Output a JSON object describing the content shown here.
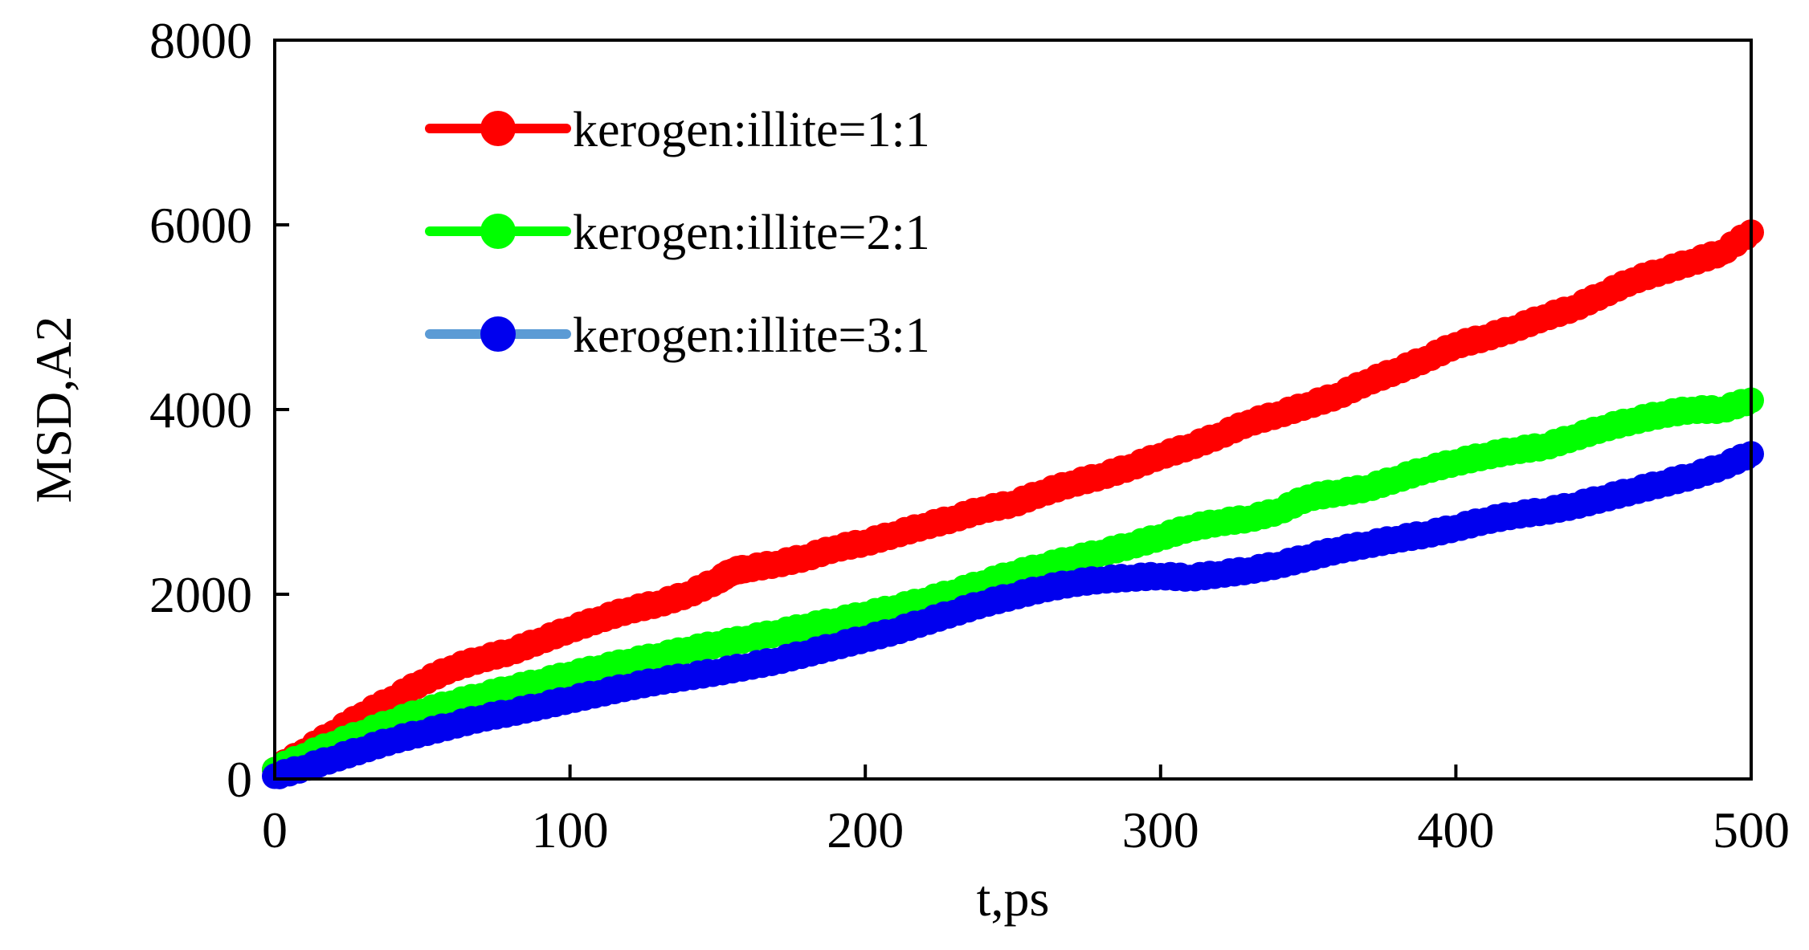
{
  "chart_data": {
    "type": "line",
    "title": "",
    "xlabel": "t,ps",
    "ylabel": "MSD,A2",
    "xlim": [
      0,
      500
    ],
    "ylim": [
      0,
      8000
    ],
    "xticks": [
      0,
      100,
      200,
      300,
      400,
      500
    ],
    "yticks": [
      0,
      2000,
      4000,
      6000,
      8000
    ],
    "grid": false,
    "legend_position": "top-left",
    "series": [
      {
        "name": "kerogen:illite=1:1",
        "color": "#ff0000",
        "x": [
          0,
          10,
          20,
          30,
          40,
          50,
          60,
          70,
          80,
          90,
          100,
          110,
          120,
          130,
          140,
          150,
          155,
          160,
          170,
          180,
          190,
          200,
          210,
          220,
          230,
          240,
          250,
          260,
          270,
          280,
          290,
          300,
          310,
          320,
          330,
          340,
          350,
          360,
          370,
          380,
          390,
          400,
          410,
          420,
          430,
          440,
          450,
          460,
          470,
          480,
          490,
          500
        ],
        "y": [
          100,
          300,
          500,
          700,
          870,
          1050,
          1200,
          1300,
          1380,
          1500,
          1620,
          1730,
          1830,
          1900,
          2000,
          2150,
          2250,
          2280,
          2330,
          2400,
          2500,
          2560,
          2650,
          2740,
          2820,
          2920,
          2980,
          3100,
          3200,
          3280,
          3380,
          3500,
          3600,
          3720,
          3860,
          3950,
          4050,
          4150,
          4300,
          4420,
          4550,
          4700,
          4780,
          4880,
          5000,
          5100,
          5250,
          5400,
          5500,
          5600,
          5700,
          5920
        ]
      },
      {
        "name": "kerogen:illite=2:1",
        "color": "#00ff00",
        "x": [
          0,
          10,
          20,
          30,
          40,
          50,
          60,
          70,
          80,
          90,
          100,
          110,
          120,
          130,
          140,
          150,
          160,
          170,
          180,
          190,
          200,
          210,
          220,
          230,
          240,
          250,
          260,
          270,
          280,
          290,
          300,
          310,
          320,
          330,
          340,
          350,
          360,
          370,
          380,
          390,
          400,
          410,
          420,
          430,
          440,
          450,
          460,
          470,
          480,
          490,
          500
        ],
        "y": [
          100,
          250,
          380,
          500,
          620,
          730,
          820,
          900,
          980,
          1050,
          1130,
          1200,
          1270,
          1330,
          1400,
          1460,
          1520,
          1580,
          1650,
          1710,
          1780,
          1850,
          1930,
          2020,
          2120,
          2220,
          2300,
          2380,
          2450,
          2530,
          2620,
          2720,
          2780,
          2820,
          2900,
          3050,
          3100,
          3150,
          3250,
          3350,
          3430,
          3500,
          3560,
          3600,
          3700,
          3800,
          3880,
          3950,
          4000,
          4000,
          4100
        ]
      },
      {
        "name": "kerogen:illite=3:1",
        "color": "#0000ee",
        "x": [
          0,
          10,
          20,
          30,
          40,
          50,
          60,
          70,
          80,
          90,
          100,
          110,
          120,
          130,
          140,
          150,
          160,
          170,
          180,
          190,
          200,
          210,
          220,
          230,
          240,
          250,
          260,
          270,
          280,
          290,
          300,
          310,
          320,
          330,
          340,
          350,
          360,
          370,
          380,
          390,
          400,
          410,
          420,
          430,
          440,
          450,
          460,
          470,
          480,
          490,
          500
        ],
        "y": [
          30,
          120,
          220,
          320,
          420,
          500,
          580,
          660,
          720,
          790,
          860,
          930,
          1000,
          1060,
          1110,
          1160,
          1220,
          1280,
          1360,
          1440,
          1520,
          1600,
          1700,
          1800,
          1900,
          1980,
          2060,
          2120,
          2160,
          2180,
          2200,
          2180,
          2220,
          2260,
          2320,
          2400,
          2480,
          2540,
          2600,
          2650,
          2720,
          2800,
          2860,
          2900,
          2960,
          3040,
          3120,
          3200,
          3280,
          3380,
          3520
        ]
      }
    ]
  }
}
